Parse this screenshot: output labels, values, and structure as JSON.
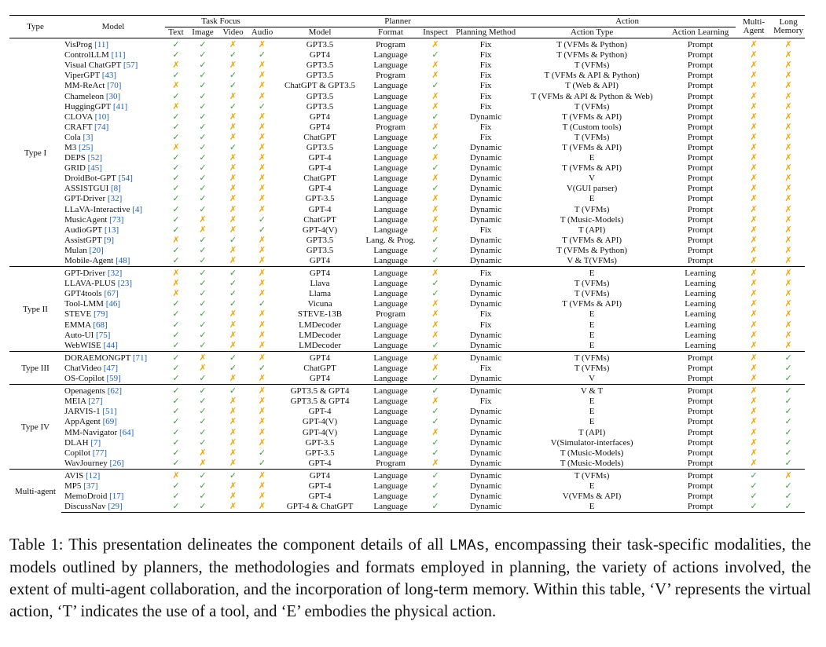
{
  "header": {
    "type": "Type",
    "model": "Model",
    "task_focus": "Task Focus",
    "planner": "Planner",
    "action": "Action",
    "multi_agent": [
      "Multi-",
      "Agent"
    ],
    "long_memory": [
      "Long",
      "Memory"
    ],
    "sub": [
      "Text",
      "Image",
      "Video",
      "Audio",
      "Model",
      "Format",
      "Inspect",
      "Planning Method",
      "Action Type",
      "Action Learning"
    ]
  },
  "symbols": {
    "yes": "✓",
    "no": "✗"
  },
  "colors": {
    "yes": "#3a9c3a",
    "no": "#f0a500",
    "cite": "#1a5fb4"
  },
  "groups": [
    {
      "type": "Type I",
      "rows": [
        {
          "name": "VisProg",
          "cite": "[11]",
          "f": "YYNN",
          "pm": "GPT3.5",
          "pf": "Program",
          "ins": "N",
          "meth": "Fix",
          "at": "T (VFMs & Python)",
          "al": "Prompt",
          "ma": "N",
          "lm": "N"
        },
        {
          "name": "ControlLLM",
          "cite": "[11]",
          "f": "YYYY",
          "pm": "GPT4",
          "pf": "Language",
          "ins": "Y",
          "meth": "Fix",
          "at": "T (VFMs & Python)",
          "al": "Prompt",
          "ma": "N",
          "lm": "N"
        },
        {
          "name": "Visual ChatGPT",
          "cite": "[57]",
          "f": "NYNN",
          "pm": "GPT3.5",
          "pf": "Language",
          "ins": "N",
          "meth": "Fix",
          "at": "T (VFMs)",
          "al": "Prompt",
          "ma": "N",
          "lm": "N"
        },
        {
          "name": "ViperGPT",
          "cite": "[43]",
          "f": "YYYN",
          "pm": "GPT3.5",
          "pf": "Program",
          "ins": "N",
          "meth": "Fix",
          "at": "T (VFMs & API & Python)",
          "al": "Prompt",
          "ma": "N",
          "lm": "N"
        },
        {
          "name": "MM-ReAct",
          "cite": "[70]",
          "f": "NYYN",
          "pm": "ChatGPT & GPT3.5",
          "pf": "Language",
          "ins": "Y",
          "meth": "Fix",
          "at": "T (Web & API)",
          "al": "Prompt",
          "ma": "N",
          "lm": "N"
        },
        {
          "name": "Chameleon",
          "cite": "[30]",
          "f": "YYNN",
          "pm": "GPT3.5",
          "pf": "Language",
          "ins": "N",
          "meth": "Fix",
          "at": "T (VFMs & API & Python & Web)",
          "al": "Prompt",
          "ma": "N",
          "lm": "N"
        },
        {
          "name": "HuggingGPT",
          "cite": "[41]",
          "f": "NYYY",
          "pm": "GPT3.5",
          "pf": "Language",
          "ins": "N",
          "meth": "Fix",
          "at": "T (VFMs)",
          "al": "Prompt",
          "ma": "N",
          "lm": "N"
        },
        {
          "name": "CLOVA",
          "cite": "[10]",
          "f": "YYNN",
          "pm": "GPT4",
          "pf": "Language",
          "ins": "Y",
          "meth": "Dynamic",
          "at": "T (VFMs & API)",
          "al": "Prompt",
          "ma": "N",
          "lm": "N"
        },
        {
          "name": "CRAFT",
          "cite": "[74]",
          "f": "YYNN",
          "pm": "GPT4",
          "pf": "Program",
          "ins": "N",
          "meth": "Fix",
          "at": "T (Custom tools)",
          "al": "Prompt",
          "ma": "N",
          "lm": "N"
        },
        {
          "name": "Cola",
          "cite": "[3]",
          "f": "YYNN",
          "pm": "ChatGPT",
          "pf": "Language",
          "ins": "N",
          "meth": "Fix",
          "at": "T (VFMs)",
          "al": "Prompt",
          "ma": "N",
          "lm": "N"
        },
        {
          "name": "M3",
          "cite": "[25]",
          "f": "NYYN",
          "pm": "GPT3.5",
          "pf": "Language",
          "ins": "Y",
          "meth": "Dynamic",
          "at": "T (VFMs & API)",
          "al": "Prompt",
          "ma": "N",
          "lm": "N"
        },
        {
          "name": "DEPS",
          "cite": "[52]",
          "f": "YYNN",
          "pm": "GPT-4",
          "pf": "Language",
          "ins": "N",
          "meth": "Dynamic",
          "at": "E",
          "al": "Prompt",
          "ma": "N",
          "lm": "N"
        },
        {
          "name": "GRID",
          "cite": "[45]",
          "f": "YYNN",
          "pm": "GPT-4",
          "pf": "Language",
          "ins": "Y",
          "meth": "Dynamic",
          "at": "T (VFMs & API)",
          "al": "Prompt",
          "ma": "N",
          "lm": "N"
        },
        {
          "name": "DroidBot-GPT",
          "cite": "[54]",
          "f": "YYNN",
          "pm": "ChatGPT",
          "pf": "Language",
          "ins": "N",
          "meth": "Dynamic",
          "at": "V",
          "al": "Prompt",
          "ma": "N",
          "lm": "N"
        },
        {
          "name": "ASSISTGUI",
          "cite": "[8]",
          "f": "YYNN",
          "pm": "GPT-4",
          "pf": "Language",
          "ins": "Y",
          "meth": "Dynamic",
          "at": "V(GUI parser)",
          "al": "Prompt",
          "ma": "N",
          "lm": "N"
        },
        {
          "name": "GPT-Driver",
          "cite": "[32]",
          "f": "YYNN",
          "pm": "GPT-3.5",
          "pf": "Language",
          "ins": "N",
          "meth": "Dynamic",
          "at": "E",
          "al": "Prompt",
          "ma": "N",
          "lm": "N"
        },
        {
          "name": "LLaVA-Interactive",
          "cite": "[4]",
          "f": "YYNN",
          "pm": "GPT-4",
          "pf": "Language",
          "ins": "N",
          "meth": "Dynamic",
          "at": "T (VFMs)",
          "al": "Prompt",
          "ma": "N",
          "lm": "N"
        },
        {
          "name": "MusicAgent",
          "cite": "[73]",
          "f": "YNNY",
          "pm": "ChatGPT",
          "pf": "Language",
          "ins": "N",
          "meth": "Dynamic",
          "at": "T (Music-Models)",
          "al": "Prompt",
          "ma": "N",
          "lm": "N"
        },
        {
          "name": "AudioGPT",
          "cite": "[13]",
          "f": "YNNY",
          "pm": "GPT-4(V)",
          "pf": "Language",
          "ins": "N",
          "meth": "Fix",
          "at": "T (API)",
          "al": "Prompt",
          "ma": "N",
          "lm": "N"
        },
        {
          "name": "AssistGPT",
          "cite": "[9]",
          "f": "NYYN",
          "pm": "GPT3.5",
          "pf": "Lang. & Prog.",
          "ins": "Y",
          "meth": "Dynamic",
          "at": "T (VFMs & API)",
          "al": "Prompt",
          "ma": "N",
          "lm": "N"
        },
        {
          "name": "Mulan",
          "cite": "[20]",
          "f": "YYNN",
          "pm": "GPT3.5",
          "pf": "Language",
          "ins": "Y",
          "meth": "Dynamic",
          "at": "T (VFMs & Python)",
          "al": "Prompt",
          "ma": "N",
          "lm": "N"
        },
        {
          "name": "Mobile-Agent",
          "cite": "[48]",
          "f": "YYNN",
          "pm": "GPT4",
          "pf": "Language",
          "ins": "Y",
          "meth": "Dynamic",
          "at": "V & T(VFMs)",
          "al": "Prompt",
          "ma": "N",
          "lm": "N"
        }
      ]
    },
    {
      "type": "Type II",
      "rows": [
        {
          "name": "GPT-Driver",
          "cite": "[32]",
          "f": "NYYN",
          "pm": "GPT4",
          "pf": "Language",
          "ins": "N",
          "meth": "Fix",
          "at": "E",
          "al": "Learning",
          "ma": "N",
          "lm": "N"
        },
        {
          "name": "LLAVA-PLUS",
          "cite": "[23]",
          "f": "NYYN",
          "pm": "Llava",
          "pf": "Language",
          "ins": "Y",
          "meth": "Dynamic",
          "at": "T (VFMs)",
          "al": "Learning",
          "ma": "N",
          "lm": "N"
        },
        {
          "name": "GPT4tools",
          "cite": "[67]",
          "f": "NYYN",
          "pm": "Llama",
          "pf": "Language",
          "ins": "Y",
          "meth": "Dynamic",
          "at": "T (VFMs)",
          "al": "Learning",
          "ma": "N",
          "lm": "N"
        },
        {
          "name": "Tool-LMM",
          "cite": "[46]",
          "f": "YYYY",
          "pm": "Vicuna",
          "pf": "Language",
          "ins": "N",
          "meth": "Dynamic",
          "at": "T (VFMs & API)",
          "al": "Learning",
          "ma": "N",
          "lm": "N"
        },
        {
          "name": "STEVE",
          "cite": "[79]",
          "f": "YYNN",
          "pm": "STEVE-13B",
          "pf": "Program",
          "ins": "N",
          "meth": "Fix",
          "at": "E",
          "al": "Learning",
          "ma": "N",
          "lm": "N"
        },
        {
          "name": "EMMA",
          "cite": "[68]",
          "f": "YYNN",
          "pm": "LMDecoder",
          "pf": "Language",
          "ins": "N",
          "meth": "Fix",
          "at": "E",
          "al": "Learning",
          "ma": "N",
          "lm": "N"
        },
        {
          "name": "Auto-UI",
          "cite": "[75]",
          "f": "YYNN",
          "pm": "LMDecoder",
          "pf": "Language",
          "ins": "N",
          "meth": "Dynamic",
          "at": "E",
          "al": "Learning",
          "ma": "N",
          "lm": "N"
        },
        {
          "name": "WebWISE",
          "cite": "[44]",
          "f": "YYNN",
          "pm": "LMDecoder",
          "pf": "Language",
          "ins": "Y",
          "meth": "Dynamic",
          "at": "E",
          "al": "Learning",
          "ma": "N",
          "lm": "N"
        }
      ]
    },
    {
      "type": "Type III",
      "rows": [
        {
          "name": "DORAEMONGPT",
          "cite": "[71]",
          "f": "YNYN",
          "pm": "GPT4",
          "pf": "Language",
          "ins": "N",
          "meth": "Dynamic",
          "at": "T (VFMs)",
          "al": "Prompt",
          "ma": "N",
          "lm": "Y"
        },
        {
          "name": "ChatVideo",
          "cite": "[47]",
          "f": "YNYY",
          "pm": "ChatGPT",
          "pf": "Language",
          "ins": "N",
          "meth": "Fix",
          "at": "T (VFMs)",
          "al": "Prompt",
          "ma": "N",
          "lm": "Y"
        },
        {
          "name": "OS-Copilot",
          "cite": "[59]",
          "f": "YYNN",
          "pm": "GPT4",
          "pf": "Language",
          "ins": "Y",
          "meth": "Dynamic",
          "at": "V",
          "al": "Prompt",
          "ma": "N",
          "lm": "Y"
        }
      ]
    },
    {
      "type": "Type IV",
      "rows": [
        {
          "name": "Openagents",
          "cite": "[62]",
          "f": "YYYN",
          "pm": "GPT3.5 & GPT4",
          "pf": "Language",
          "ins": "Y",
          "meth": "Dynamic",
          "at": "V & T",
          "al": "Prompt",
          "ma": "N",
          "lm": "Y"
        },
        {
          "name": "MEIA",
          "cite": "[27]",
          "f": "YYNN",
          "pm": "GPT3.5 & GPT4",
          "pf": "Language",
          "ins": "N",
          "meth": "Fix",
          "at": "E",
          "al": "Prompt",
          "ma": "N",
          "lm": "Y"
        },
        {
          "name": "JARVIS-1",
          "cite": "[51]",
          "f": "YYNN",
          "pm": "GPT-4",
          "pf": "Language",
          "ins": "Y",
          "meth": "Dynamic",
          "at": "E",
          "al": "Prompt",
          "ma": "N",
          "lm": "Y"
        },
        {
          "name": "AppAgent",
          "cite": "[69]",
          "f": "YYNN",
          "pm": "GPT-4(V)",
          "pf": "Language",
          "ins": "Y",
          "meth": "Dynamic",
          "at": "E",
          "al": "Prompt",
          "ma": "N",
          "lm": "Y"
        },
        {
          "name": "MM-Navigator",
          "cite": "[64]",
          "f": "YYNN",
          "pm": "GPT-4(V)",
          "pf": "Language",
          "ins": "N",
          "meth": "Dynamic",
          "at": "T (API)",
          "al": "Prompt",
          "ma": "N",
          "lm": "Y"
        },
        {
          "name": "DLAH",
          "cite": "[7]",
          "f": "YYNN",
          "pm": "GPT-3.5",
          "pf": "Language",
          "ins": "Y",
          "meth": "Dynamic",
          "at": "V(Simulator-interfaces)",
          "al": "Prompt",
          "ma": "N",
          "lm": "Y"
        },
        {
          "name": "Copilot",
          "cite": "[77]",
          "f": "YNNY",
          "pm": "GPT-3.5",
          "pf": "Language",
          "ins": "Y",
          "meth": "Dynamic",
          "at": "T (Music-Models)",
          "al": "Prompt",
          "ma": "N",
          "lm": "Y"
        },
        {
          "name": "WavJourney",
          "cite": "[26]",
          "f": "YNNY",
          "pm": "GPT-4",
          "pf": "Program",
          "ins": "N",
          "meth": "Dynamic",
          "at": "T (Music-Models)",
          "al": "Prompt",
          "ma": "N",
          "lm": "Y"
        }
      ]
    },
    {
      "type": "Multi-agent",
      "rows": [
        {
          "name": "AVIS",
          "cite": "[12]",
          "f": "NYYN",
          "pm": "GPT4",
          "pf": "Language",
          "ins": "Y",
          "meth": "Dynamic",
          "at": "T (VFMs)",
          "al": "Prompt",
          "ma": "Y",
          "lm": "N"
        },
        {
          "name": "MP5",
          "cite": "[37]",
          "f": "YYNN",
          "pm": "GPT-4",
          "pf": "Language",
          "ins": "Y",
          "meth": "Dynamic",
          "at": "E",
          "al": "Prompt",
          "ma": "Y",
          "lm": "Y"
        },
        {
          "name": "MemoDroid",
          "cite": "[17]",
          "f": "YYNN",
          "pm": "GPT-4",
          "pf": "Language",
          "ins": "Y",
          "meth": "Dynamic",
          "at": "V(VFMs & API)",
          "al": "Prompt",
          "ma": "Y",
          "lm": "Y"
        },
        {
          "name": "DiscussNav",
          "cite": "[29]",
          "f": "YYNN",
          "pm": "GPT-4 & ChatGPT",
          "pf": "Language",
          "ins": "Y",
          "meth": "Dynamic",
          "at": "E",
          "al": "Prompt",
          "ma": "Y",
          "lm": "Y"
        }
      ]
    }
  ],
  "caption": {
    "prefix": "Table 1: This presentation delineates the component details of all ",
    "mono": "LMAs",
    "suffix": ", encompassing their task-specific modalities, the models outlined by planners, the methodologies and formats employed in planning, the variety of actions involved, the extent of multi-agent collaboration, and the incorporation of long-term memory. Within this table, ‘V’ represents the virtual action, ‘T’ indicates the use of a tool, and ‘E’ embodies the physical action."
  }
}
